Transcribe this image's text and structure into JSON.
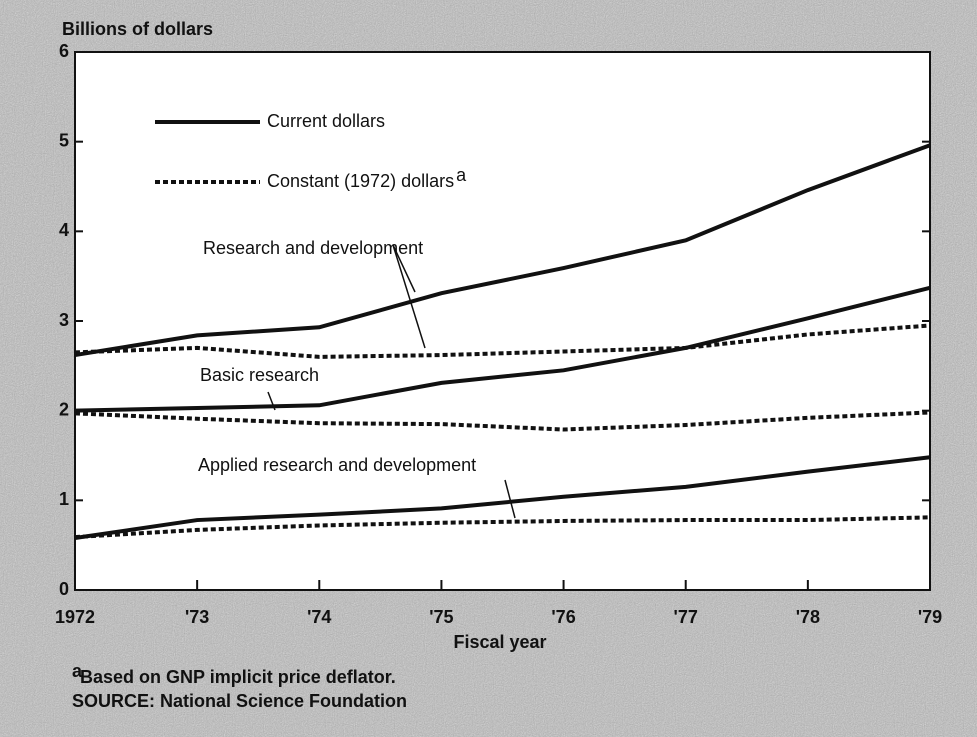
{
  "chart_data": {
    "type": "line",
    "y_label": "Billions of dollars",
    "x_label": "Fiscal year",
    "x": [
      1972,
      1973,
      1974,
      1975,
      1976,
      1977,
      1978,
      1979
    ],
    "xlim": [
      1972,
      1979
    ],
    "xticks": [
      1972,
      {
        "value": 1973,
        "label": "'73"
      },
      {
        "value": 1974,
        "label": "'74"
      },
      {
        "value": 1975,
        "label": "'75"
      },
      {
        "value": 1976,
        "label": "'76"
      },
      {
        "value": 1977,
        "label": "'77"
      },
      {
        "value": 1978,
        "label": "'78"
      },
      {
        "value": 1979,
        "label": "'79"
      }
    ],
    "ylim": [
      0,
      6
    ],
    "yticks": [
      0,
      1,
      2,
      3,
      4,
      5,
      6
    ],
    "legend": [
      {
        "label": "Current dollars",
        "style": "solid"
      },
      {
        "label": "Constant (1972) dollars",
        "marker": "a",
        "style": "dotted"
      }
    ],
    "annotations": [
      "Research and development",
      "Basic research",
      "Applied research and development"
    ],
    "series": [
      {
        "style": "solid",
        "color": "#111111",
        "values": [
          2.62,
          2.84,
          2.93,
          3.31,
          3.59,
          3.9,
          4.46,
          4.96
        ]
      },
      {
        "style": "dotted",
        "color": "#111111",
        "values": [
          2.65,
          2.7,
          2.6,
          2.62,
          2.66,
          2.7,
          2.85,
          2.95
        ]
      },
      {
        "style": "solid",
        "color": "#111111",
        "values": [
          2.0,
          2.03,
          2.06,
          2.31,
          2.45,
          2.7,
          3.03,
          3.37
        ]
      },
      {
        "style": "dotted",
        "color": "#111111",
        "values": [
          1.97,
          1.91,
          1.86,
          1.85,
          1.79,
          1.84,
          1.92,
          1.98
        ]
      },
      {
        "style": "solid",
        "color": "#111111",
        "values": [
          0.58,
          0.78,
          0.84,
          0.91,
          1.04,
          1.15,
          1.32,
          1.48
        ]
      },
      {
        "style": "dotted",
        "color": "#111111",
        "values": [
          0.59,
          0.67,
          0.72,
          0.75,
          0.77,
          0.78,
          0.78,
          0.81
        ]
      }
    ],
    "footnote": {
      "marker": "a",
      "text": "Based on GNP implicit price deflator."
    },
    "source": "SOURCE: National Science Foundation"
  }
}
